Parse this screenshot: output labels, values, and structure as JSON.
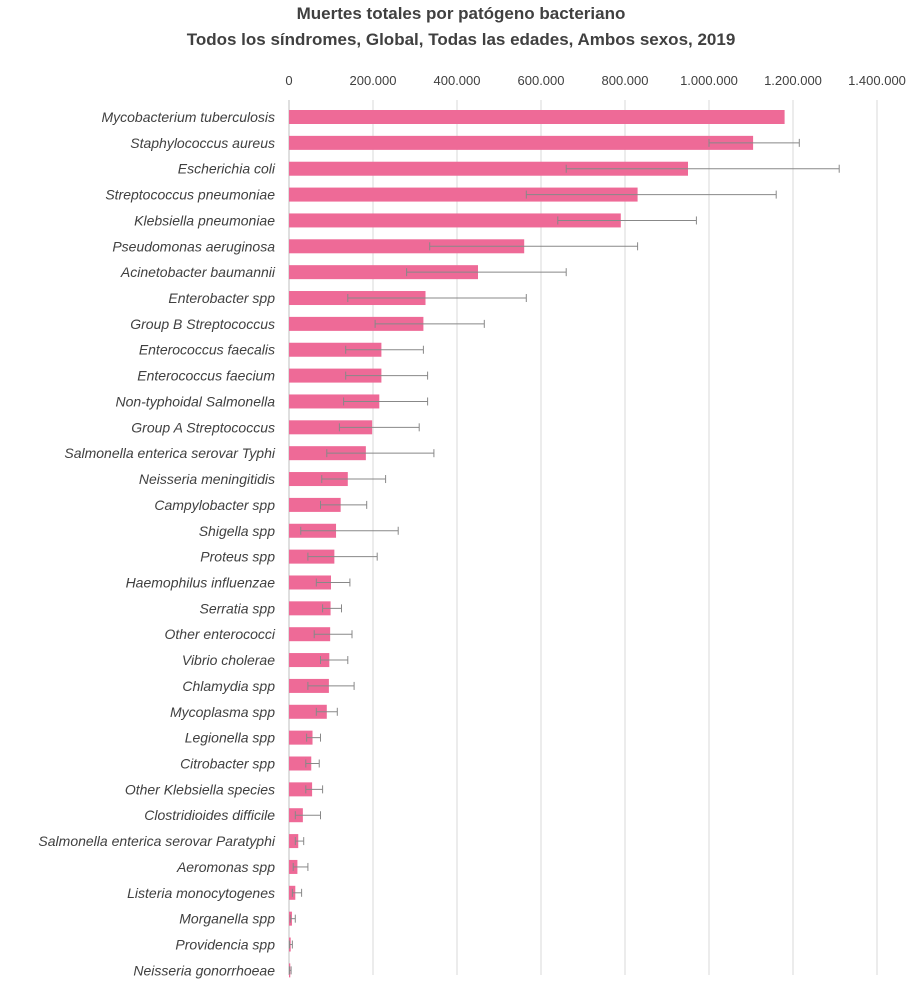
{
  "chart_data": {
    "type": "bar",
    "orientation": "horizontal",
    "title": "Muertes totales por patógeno bacteriano",
    "subtitle": "Todos los síndromes, Global, Todas las edades, Ambos sexos, 2019",
    "xlabel": "",
    "ylabel": "",
    "xlim": [
      0,
      1400000
    ],
    "x_ticks": [
      0,
      200000,
      400000,
      600000,
      800000,
      1000000,
      1200000,
      1400000
    ],
    "x_tick_labels": [
      "0",
      "200.000",
      "400.000",
      "600.000",
      "800.000",
      "1.000.000",
      "1.200.000",
      "1.400.000"
    ],
    "grid": true,
    "bar_color": "#EE6A97",
    "error_bar_color": "#888888",
    "categories": [
      "Mycobacterium tuberculosis",
      "Staphylococcus aureus",
      "Escherichia coli",
      "Streptococcus pneumoniae",
      "Klebsiella pneumoniae",
      "Pseudomonas aeruginosa",
      "Acinetobacter baumannii",
      "Enterobacter spp",
      "Group B Streptococcus",
      "Enterococcus faecalis",
      "Enterococcus faecium",
      "Non-typhoidal Salmonella",
      "Group A Streptococcus",
      "Salmonella enterica serovar Typhi",
      "Neisseria meningitidis",
      "Campylobacter spp",
      "Shigella spp",
      "Proteus spp",
      "Haemophilus influenzae",
      "Serratia spp",
      "Other enterococci",
      "Vibrio cholerae",
      "Chlamydia spp",
      "Mycoplasma spp",
      "Legionella spp",
      "Citrobacter spp",
      "Other Klebsiella species",
      "Clostridioides difficile",
      "Salmonella enterica serovar Paratyphi",
      "Aeromonas spp",
      "Listeria monocytogenes",
      "Morganella spp",
      "Providencia spp",
      "Neisseria gonorrhoeae"
    ],
    "values": [
      1180000,
      1105000,
      950000,
      830000,
      790000,
      560000,
      450000,
      325000,
      320000,
      220000,
      220000,
      215000,
      198000,
      183000,
      140000,
      123000,
      112000,
      108000,
      100000,
      99000,
      98000,
      96000,
      95000,
      90000,
      56000,
      53000,
      55000,
      33000,
      22000,
      20000,
      15000,
      7000,
      4000,
      3000
    ],
    "error_low": [
      null,
      1000000,
      660000,
      565000,
      640000,
      335000,
      280000,
      140000,
      205000,
      135000,
      135000,
      130000,
      120000,
      90000,
      78000,
      75000,
      28000,
      45000,
      65000,
      80000,
      60000,
      75000,
      45000,
      65000,
      42000,
      40000,
      40000,
      15000,
      15000,
      10000,
      8000,
      3000,
      1000,
      1000
    ],
    "error_high": [
      null,
      1215000,
      1310000,
      1160000,
      970000,
      830000,
      660000,
      565000,
      465000,
      320000,
      330000,
      330000,
      310000,
      345000,
      230000,
      185000,
      260000,
      210000,
      145000,
      125000,
      150000,
      140000,
      155000,
      115000,
      75000,
      72000,
      80000,
      75000,
      35000,
      45000,
      30000,
      15000,
      8000,
      5000
    ]
  }
}
